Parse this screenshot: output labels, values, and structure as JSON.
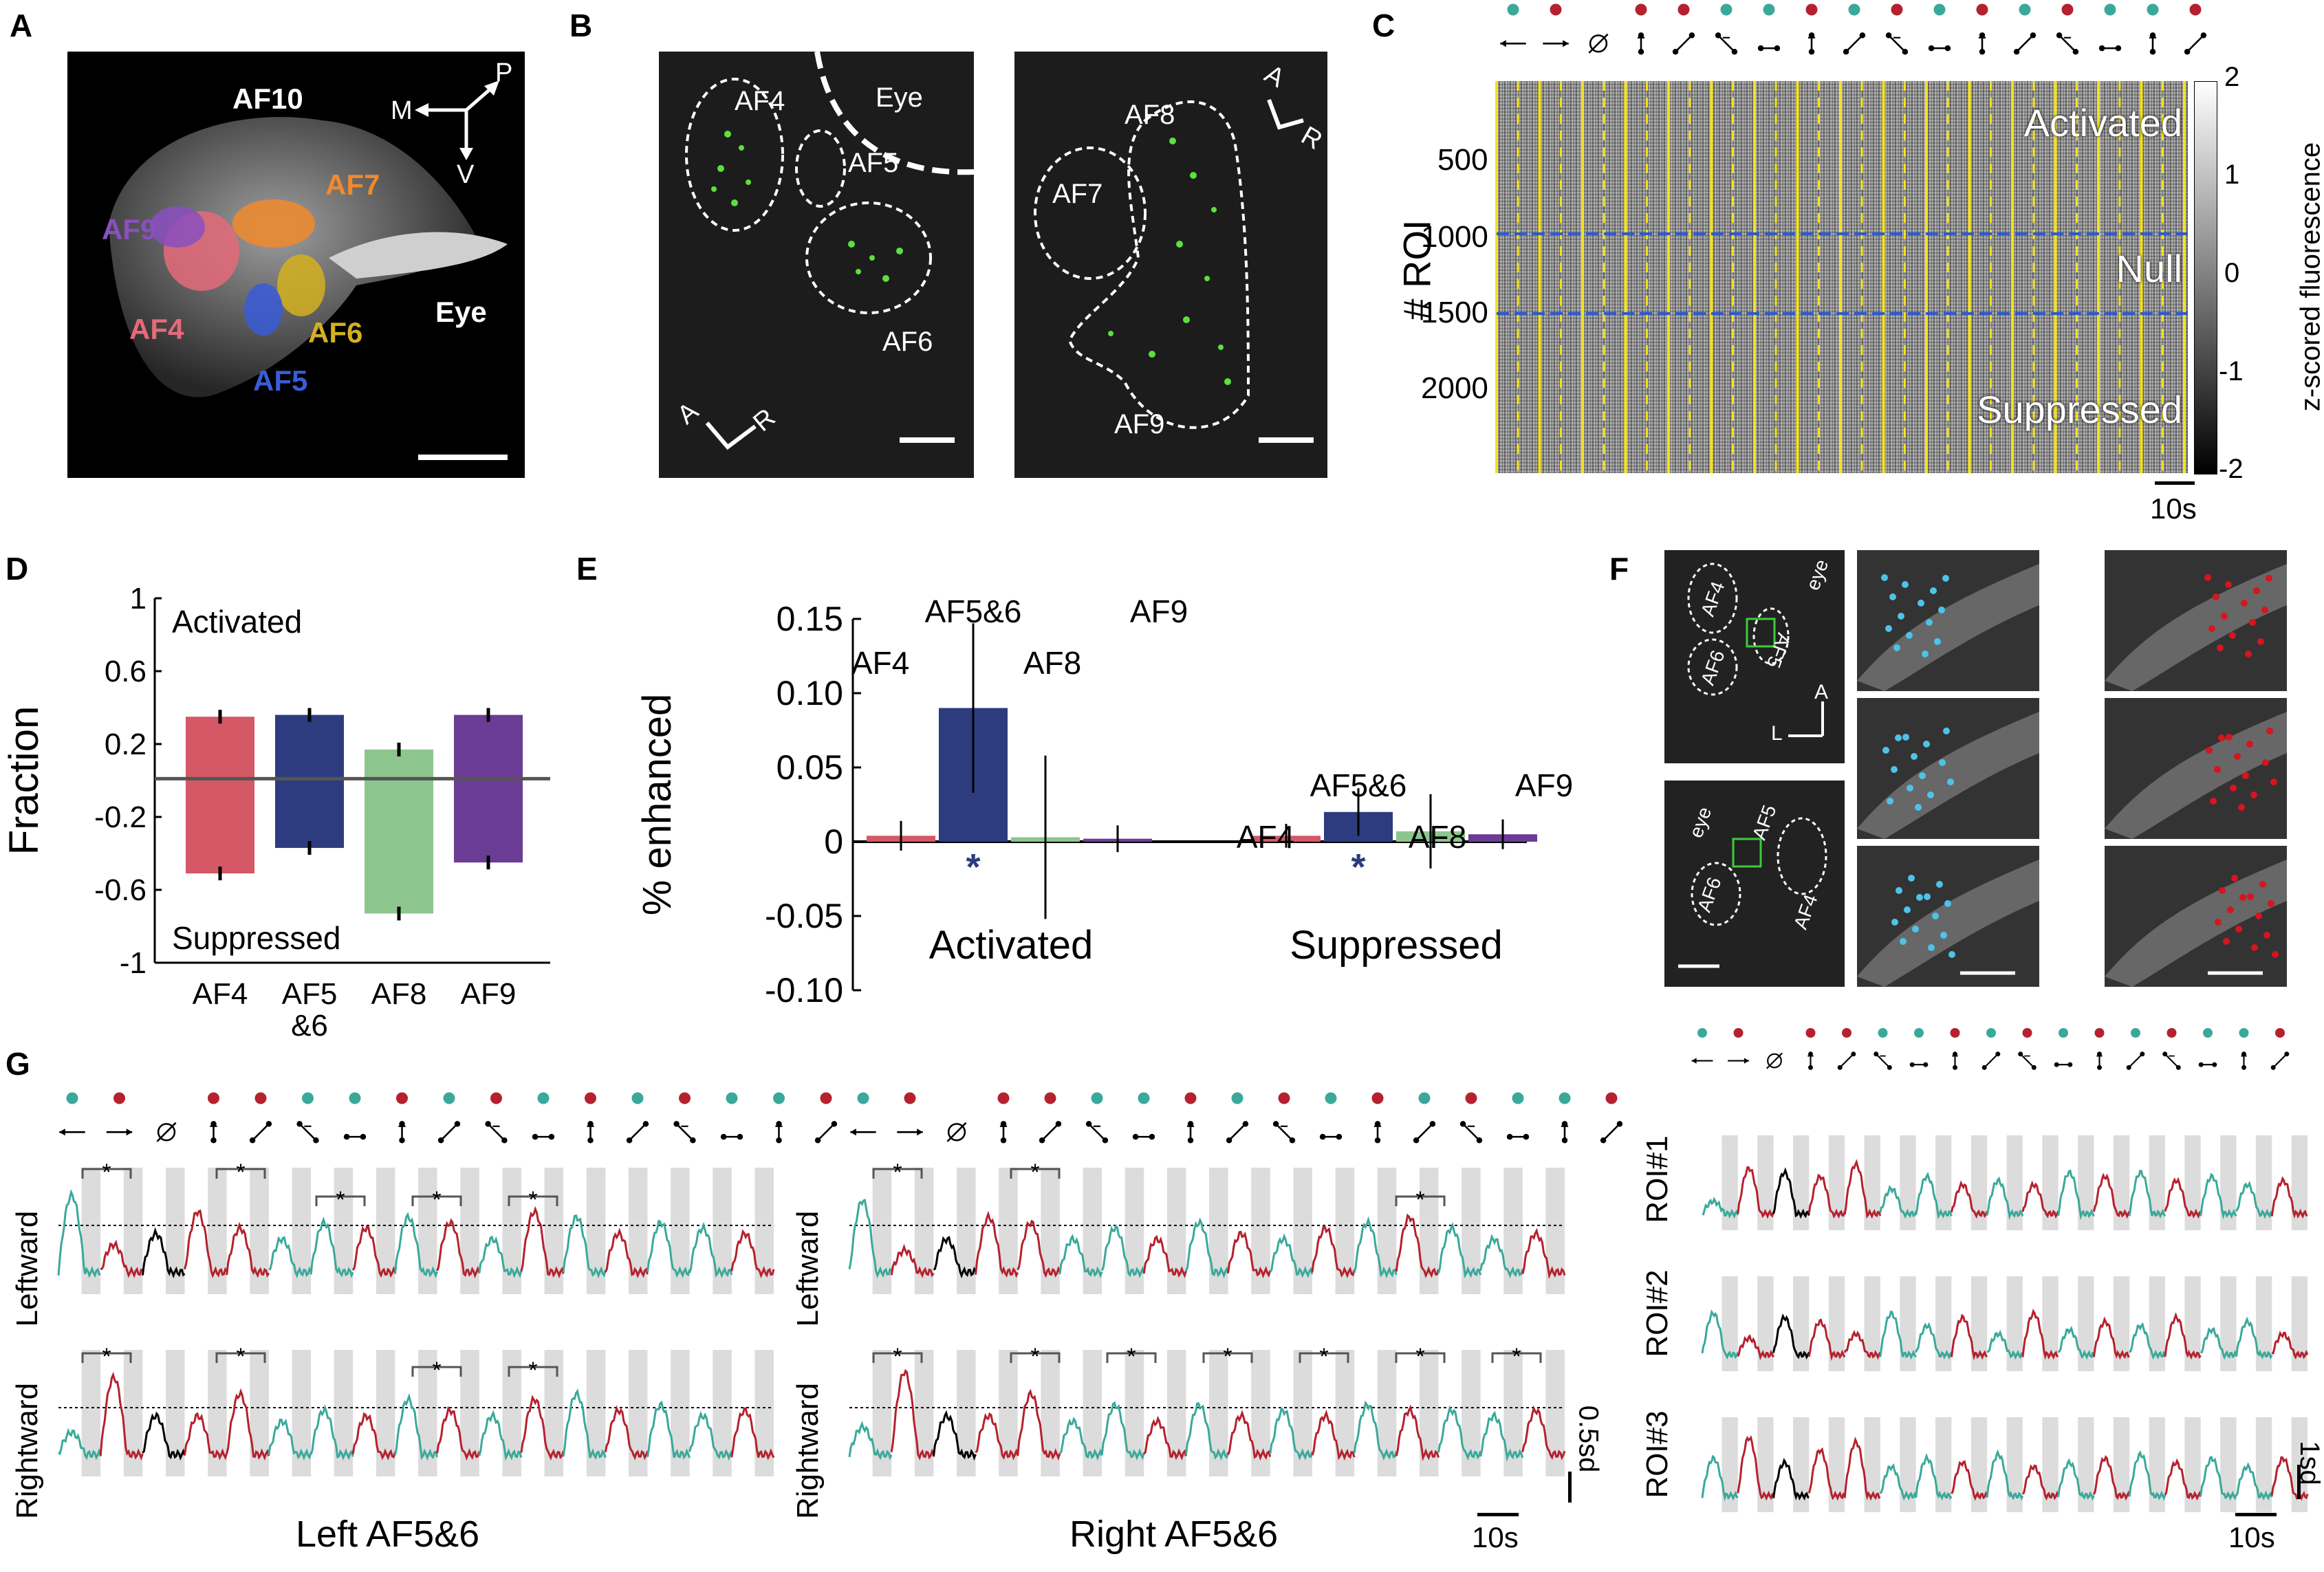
{
  "panel_labels": [
    "A",
    "B",
    "C",
    "D",
    "E",
    "F",
    "G"
  ],
  "panelA": {
    "labels": [
      "AF10",
      "AF7",
      "AF9",
      "AF4",
      "AF6",
      "AF5",
      "Eye"
    ],
    "orientation": [
      "M",
      "P",
      "V"
    ]
  },
  "panelB": {
    "left_labels": [
      "AF4",
      "Eye",
      "AF5",
      "AF6"
    ],
    "right_labels": [
      "AF7",
      "AF8",
      "AF9"
    ],
    "orient_left": [
      "A",
      "R"
    ],
    "orient_right": [
      "A",
      "R"
    ]
  },
  "panelC": {
    "ylabel": "# ROI",
    "yticks": [
      "500",
      "1000",
      "1500",
      "2000"
    ],
    "region_labels": [
      "Activated",
      "Null",
      "Suppressed"
    ],
    "colorbar_label": "z-scored fluorescence",
    "colorbar_ticks": [
      "2",
      "1",
      "0",
      "-1",
      "-2"
    ],
    "scalebar": "10s",
    "dot_colors": [
      "#3aa99a",
      "#b5212e",
      "none",
      "#b5212e",
      "#b5212e",
      "#3aa99a",
      "#3aa99a",
      "#b5212e",
      "#3aa99a",
      "#b5212e",
      "#3aa99a",
      "#b5212e",
      "#3aa99a",
      "#b5212e",
      "#3aa99a",
      "#3aa99a",
      "#b5212e"
    ]
  },
  "panelF": {
    "labels_top": [
      "AF4",
      "AF6",
      "AF5",
      "eye"
    ],
    "labels_bottom": [
      "eye",
      "AF5",
      "AF6",
      "AF4"
    ],
    "orient": [
      "A",
      "L"
    ]
  },
  "panelG": {
    "row_labels": [
      "Leftward",
      "Rightward"
    ],
    "left_title": "Left AF5&6",
    "right_title": "Right AF5&6",
    "scale_y": "0.5sd",
    "scale_x": "10s",
    "roi_labels": [
      "ROI#1",
      "ROI#2",
      "ROI#3"
    ],
    "roi_scale_y": "1sd",
    "roi_scale_x": "10s"
  },
  "chart_data": [
    {
      "id": "D",
      "type": "bar",
      "ylabel": "Fraction",
      "annotations": [
        "Activated",
        "Suppressed"
      ],
      "categories": [
        "AF4",
        "AF5&6",
        "AF8",
        "AF9"
      ],
      "category_labels": [
        "AF4",
        "AF5\n&6",
        "AF8",
        "AF9"
      ],
      "colors": [
        "#d45866",
        "#2c3c7e",
        "#8dc58e",
        "#6b3c95"
      ],
      "series": [
        {
          "name": "Activated",
          "values": [
            0.35,
            0.36,
            0.17,
            0.36
          ],
          "errors": [
            0.02,
            0.02,
            0.02,
            0.02
          ]
        },
        {
          "name": "Suppressed",
          "values": [
            -0.51,
            -0.37,
            -0.73,
            -0.45
          ],
          "errors": [
            0.02,
            0.02,
            0.03,
            0.02
          ]
        }
      ],
      "ylim": [
        -1,
        1
      ],
      "yticks": [
        "1",
        "0.6",
        "0.2",
        "-0.2",
        "-0.6",
        "-1"
      ],
      "ytick_values": [
        1,
        0.6,
        0.2,
        -0.2,
        -0.6,
        -1
      ],
      "zero_line": 0.01
    },
    {
      "id": "E",
      "type": "bar",
      "ylabel": "% enhanced",
      "groups": [
        "Activated",
        "Suppressed"
      ],
      "categories": [
        "AF4",
        "AF5&6",
        "AF8",
        "AF9"
      ],
      "colors": [
        "#d45866",
        "#2c3c7e",
        "#8dc58e",
        "#6b3c95"
      ],
      "series": [
        {
          "name": "Activated",
          "values": [
            0.004,
            0.09,
            0.003,
            0.002
          ],
          "errors": [
            0.01,
            0.057,
            0.055,
            0.009
          ]
        },
        {
          "name": "Suppressed",
          "values": [
            0.004,
            0.02,
            0.007,
            0.005
          ],
          "errors": [
            0.008,
            0.016,
            0.025,
            0.01
          ]
        }
      ],
      "significant": [
        [
          false,
          true,
          false,
          false
        ],
        [
          false,
          true,
          false,
          false
        ]
      ],
      "sig_marker": "*",
      "ylim": [
        -0.1,
        0.15
      ],
      "yticks": [
        "0.15",
        "0.10",
        "0.05",
        "0",
        "-0.05",
        "-0.10"
      ],
      "ytick_values": [
        0.15,
        0.1,
        0.05,
        0,
        -0.05,
        -0.1
      ]
    }
  ]
}
